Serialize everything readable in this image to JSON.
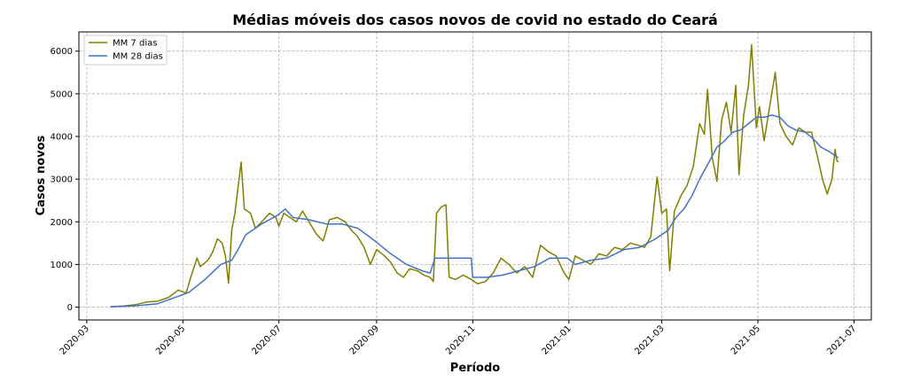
{
  "chart_data": {
    "type": "line",
    "title": "Médias móveis dos casos novos de covid no estado do Ceará",
    "xlabel": "Período",
    "ylabel": "Casos novos",
    "xlim": [
      "2020-02-25",
      "2021-07-12"
    ],
    "ylim": [
      -300,
      6450
    ],
    "grid": true,
    "legend_position": "top-left",
    "x_ticks": [
      "2020-03",
      "2020-05",
      "2020-07",
      "2020-09",
      "2020-11",
      "2021-01",
      "2021-03",
      "2021-05",
      "2021-07"
    ],
    "y_ticks": [
      0,
      1000,
      2000,
      3000,
      4000,
      5000,
      6000
    ],
    "series": [
      {
        "name": "MM 7 dias",
        "color": "#808000",
        "points": [
          [
            "2020-03-16",
            10
          ],
          [
            "2020-03-25",
            30
          ],
          [
            "2020-04-01",
            60
          ],
          [
            "2020-04-08",
            120
          ],
          [
            "2020-04-15",
            140
          ],
          [
            "2020-04-22",
            230
          ],
          [
            "2020-04-28",
            400
          ],
          [
            "2020-05-03",
            330
          ],
          [
            "2020-05-06",
            700
          ],
          [
            "2020-05-10",
            1150
          ],
          [
            "2020-05-12",
            950
          ],
          [
            "2020-05-17",
            1100
          ],
          [
            "2020-05-20",
            1300
          ],
          [
            "2020-05-23",
            1600
          ],
          [
            "2020-05-26",
            1500
          ],
          [
            "2020-05-28",
            1200
          ],
          [
            "2020-05-30",
            560
          ],
          [
            "2020-06-01",
            1800
          ],
          [
            "2020-06-03",
            2200
          ],
          [
            "2020-06-05",
            2800
          ],
          [
            "2020-06-07",
            3400
          ],
          [
            "2020-06-09",
            2300
          ],
          [
            "2020-06-13",
            2200
          ],
          [
            "2020-06-16",
            1850
          ],
          [
            "2020-06-20",
            2000
          ],
          [
            "2020-06-25",
            2200
          ],
          [
            "2020-06-29",
            2100
          ],
          [
            "2020-07-01",
            1900
          ],
          [
            "2020-07-04",
            2200
          ],
          [
            "2020-07-08",
            2100
          ],
          [
            "2020-07-12",
            2000
          ],
          [
            "2020-07-16",
            2250
          ],
          [
            "2020-07-20",
            2000
          ],
          [
            "2020-07-25",
            1700
          ],
          [
            "2020-07-29",
            1550
          ],
          [
            "2020-08-02",
            2050
          ],
          [
            "2020-08-07",
            2100
          ],
          [
            "2020-08-12",
            2000
          ],
          [
            "2020-08-16",
            1800
          ],
          [
            "2020-08-20",
            1650
          ],
          [
            "2020-08-24",
            1400
          ],
          [
            "2020-08-28",
            1000
          ],
          [
            "2020-09-01",
            1350
          ],
          [
            "2020-09-06",
            1200
          ],
          [
            "2020-09-10",
            1050
          ],
          [
            "2020-09-14",
            800
          ],
          [
            "2020-09-18",
            700
          ],
          [
            "2020-09-22",
            900
          ],
          [
            "2020-09-27",
            850
          ],
          [
            "2020-10-01",
            750
          ],
          [
            "2020-10-05",
            700
          ],
          [
            "2020-10-07",
            600
          ],
          [
            "2020-10-09",
            2200
          ],
          [
            "2020-10-12",
            2350
          ],
          [
            "2020-10-15",
            2400
          ],
          [
            "2020-10-17",
            700
          ],
          [
            "2020-10-21",
            650
          ],
          [
            "2020-10-26",
            750
          ],
          [
            "2020-10-31",
            650
          ],
          [
            "2020-11-04",
            550
          ],
          [
            "2020-11-09",
            600
          ],
          [
            "2020-11-14",
            800
          ],
          [
            "2020-11-19",
            1150
          ],
          [
            "2020-11-24",
            1000
          ],
          [
            "2020-11-29",
            800
          ],
          [
            "2020-12-04",
            950
          ],
          [
            "2020-12-09",
            700
          ],
          [
            "2020-12-14",
            1450
          ],
          [
            "2020-12-19",
            1300
          ],
          [
            "2020-12-24",
            1200
          ],
          [
            "2020-12-29",
            800
          ],
          [
            "2021-01-01",
            650
          ],
          [
            "2021-01-05",
            1200
          ],
          [
            "2021-01-10",
            1100
          ],
          [
            "2021-01-15",
            1000
          ],
          [
            "2021-01-20",
            1250
          ],
          [
            "2021-01-25",
            1200
          ],
          [
            "2021-01-30",
            1400
          ],
          [
            "2021-02-04",
            1350
          ],
          [
            "2021-02-09",
            1500
          ],
          [
            "2021-02-14",
            1450
          ],
          [
            "2021-02-18",
            1400
          ],
          [
            "2021-02-22",
            1650
          ],
          [
            "2021-02-26",
            3050
          ],
          [
            "2021-03-01",
            2200
          ],
          [
            "2021-03-04",
            2300
          ],
          [
            "2021-03-06",
            850
          ],
          [
            "2021-03-09",
            2250
          ],
          [
            "2021-03-13",
            2600
          ],
          [
            "2021-03-17",
            2850
          ],
          [
            "2021-03-21",
            3300
          ],
          [
            "2021-03-25",
            4300
          ],
          [
            "2021-03-28",
            4050
          ],
          [
            "2021-03-30",
            5100
          ],
          [
            "2021-04-02",
            3500
          ],
          [
            "2021-04-05",
            2950
          ],
          [
            "2021-04-08",
            4400
          ],
          [
            "2021-04-11",
            4800
          ],
          [
            "2021-04-14",
            4100
          ],
          [
            "2021-04-17",
            5200
          ],
          [
            "2021-04-19",
            3100
          ],
          [
            "2021-04-22",
            4500
          ],
          [
            "2021-04-25",
            5200
          ],
          [
            "2021-04-27",
            6150
          ],
          [
            "2021-04-30",
            4200
          ],
          [
            "2021-05-02",
            4700
          ],
          [
            "2021-05-05",
            3900
          ],
          [
            "2021-05-08",
            4600
          ],
          [
            "2021-05-12",
            5500
          ],
          [
            "2021-05-15",
            4300
          ],
          [
            "2021-05-19",
            4000
          ],
          [
            "2021-05-23",
            3800
          ],
          [
            "2021-05-27",
            4200
          ],
          [
            "2021-05-31",
            4100
          ],
          [
            "2021-06-04",
            4100
          ],
          [
            "2021-06-08",
            3500
          ],
          [
            "2021-06-11",
            3000
          ],
          [
            "2021-06-14",
            2650
          ],
          [
            "2021-06-17",
            3000
          ],
          [
            "2021-06-19",
            3700
          ],
          [
            "2021-06-20",
            3450
          ],
          [
            "2021-06-21",
            3400
          ]
        ]
      },
      {
        "name": "MM 28 dias",
        "color": "#4472c4",
        "points": [
          [
            "2020-03-16",
            10
          ],
          [
            "2020-03-31",
            30
          ],
          [
            "2020-04-15",
            80
          ],
          [
            "2020-04-30",
            280
          ],
          [
            "2020-05-05",
            350
          ],
          [
            "2020-05-15",
            650
          ],
          [
            "2020-05-25",
            1000
          ],
          [
            "2020-06-01",
            1100
          ],
          [
            "2020-06-05",
            1350
          ],
          [
            "2020-06-10",
            1700
          ],
          [
            "2020-06-20",
            1950
          ],
          [
            "2020-06-30",
            2150
          ],
          [
            "2020-07-05",
            2300
          ],
          [
            "2020-07-10",
            2100
          ],
          [
            "2020-07-20",
            2050
          ],
          [
            "2020-07-31",
            1950
          ],
          [
            "2020-08-10",
            1950
          ],
          [
            "2020-08-20",
            1850
          ],
          [
            "2020-08-31",
            1550
          ],
          [
            "2020-09-10",
            1250
          ],
          [
            "2020-09-20",
            1000
          ],
          [
            "2020-09-30",
            850
          ],
          [
            "2020-10-05",
            800
          ],
          [
            "2020-10-08",
            1150
          ],
          [
            "2020-10-15",
            1150
          ],
          [
            "2020-10-31",
            1150
          ],
          [
            "2020-11-01",
            700
          ],
          [
            "2020-11-10",
            700
          ],
          [
            "2020-11-20",
            750
          ],
          [
            "2020-11-30",
            850
          ],
          [
            "2020-12-10",
            950
          ],
          [
            "2020-12-20",
            1150
          ],
          [
            "2020-12-31",
            1150
          ],
          [
            "2021-01-05",
            1000
          ],
          [
            "2021-01-15",
            1100
          ],
          [
            "2021-01-25",
            1150
          ],
          [
            "2021-02-05",
            1350
          ],
          [
            "2021-02-15",
            1400
          ],
          [
            "2021-02-25",
            1600
          ],
          [
            "2021-03-05",
            1800
          ],
          [
            "2021-03-10",
            2100
          ],
          [
            "2021-03-15",
            2300
          ],
          [
            "2021-03-20",
            2600
          ],
          [
            "2021-03-25",
            3000
          ],
          [
            "2021-03-31",
            3400
          ],
          [
            "2021-04-05",
            3750
          ],
          [
            "2021-04-10",
            3900
          ],
          [
            "2021-04-15",
            4100
          ],
          [
            "2021-04-20",
            4150
          ],
          [
            "2021-04-25",
            4300
          ],
          [
            "2021-04-30",
            4450
          ],
          [
            "2021-05-05",
            4450
          ],
          [
            "2021-05-10",
            4500
          ],
          [
            "2021-05-15",
            4450
          ],
          [
            "2021-05-20",
            4250
          ],
          [
            "2021-05-25",
            4150
          ],
          [
            "2021-05-31",
            4100
          ],
          [
            "2021-06-05",
            3950
          ],
          [
            "2021-06-10",
            3750
          ],
          [
            "2021-06-15",
            3650
          ],
          [
            "2021-06-21",
            3500
          ]
        ]
      }
    ]
  }
}
